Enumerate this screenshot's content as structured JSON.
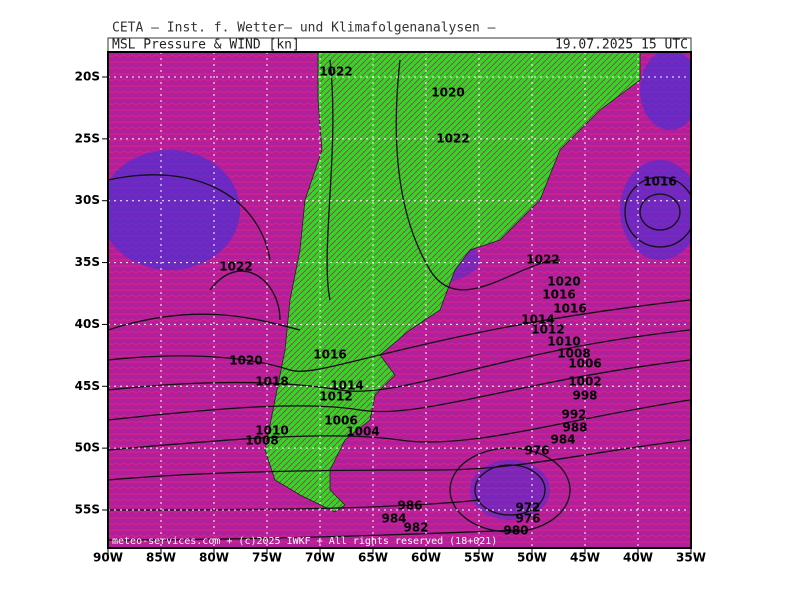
{
  "header": {
    "title": "CETA – Inst. f. Wetter– und Klimafolgenanalysen –",
    "product": "MSL Pressure & WIND [kn]",
    "valid": "19.07.2025 15 UTC"
  },
  "map": {
    "lat_ticks": [
      {
        "value": -20,
        "label": "20S"
      },
      {
        "value": -25,
        "label": "25S"
      },
      {
        "value": -30,
        "label": "30S"
      },
      {
        "value": -35,
        "label": "35S"
      },
      {
        "value": -40,
        "label": "40S"
      },
      {
        "value": -45,
        "label": "45S"
      },
      {
        "value": -50,
        "label": "50S"
      },
      {
        "value": -55,
        "label": "55S"
      }
    ],
    "lon_ticks": [
      {
        "value": -90,
        "label": "90W"
      },
      {
        "value": -85,
        "label": "85W"
      },
      {
        "value": -80,
        "label": "80W"
      },
      {
        "value": -75,
        "label": "75W"
      },
      {
        "value": -70,
        "label": "70W"
      },
      {
        "value": -65,
        "label": "65W"
      },
      {
        "value": -60,
        "label": "60W"
      },
      {
        "value": -55,
        "label": "55W"
      },
      {
        "value": -50,
        "label": "50W"
      },
      {
        "value": -45,
        "label": "45W"
      },
      {
        "value": -40,
        "label": "40W"
      },
      {
        "value": -35,
        "label": "35W"
      }
    ],
    "isobar_labels": [
      1022,
      1020,
      1022,
      1016,
      1022,
      1022,
      1020,
      1016,
      1016,
      1014,
      1012,
      1010,
      1008,
      1006,
      1020,
      1016,
      1018,
      1014,
      1012,
      1002,
      998,
      1006,
      1004,
      992,
      988,
      984,
      1010,
      1008,
      976,
      986,
      984,
      982,
      972,
      976,
      980
    ],
    "credit": "meteo-services.com + (c)2025 IWKF + All rights reserved (18+021)"
  }
}
